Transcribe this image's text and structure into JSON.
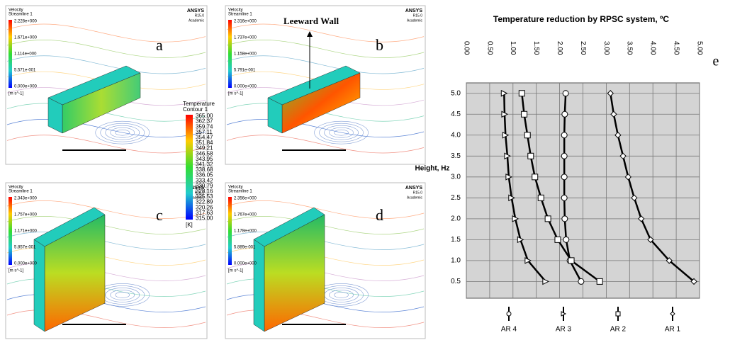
{
  "panels": [
    {
      "label": "a",
      "brand": "ANSYS",
      "version": "R15.0",
      "badge": "Academic",
      "legend": {
        "title": "Velocity",
        "subtitle": "Streamline 1",
        "values": [
          "2.228e+000",
          "1.671e+000",
          "1.114e+000",
          "5.571e-001",
          "0.000e+000"
        ],
        "unit": "[m s^-1]"
      }
    },
    {
      "label": "b",
      "brand": "ANSYS",
      "version": "R15.0",
      "badge": "Academic",
      "legend": {
        "title": "Velocity",
        "subtitle": "Streamline 1",
        "values": [
          "2.316e+000",
          "1.737e+000",
          "1.158e+000",
          "5.791e-001",
          "0.000e+000"
        ],
        "unit": "[m s^-1]"
      }
    },
    {
      "label": "c",
      "brand": "ANSYS",
      "version": "R15.0",
      "badge": "Academic",
      "legend": {
        "title": "Velocity",
        "subtitle": "Streamline 1",
        "values": [
          "2.343e+000",
          "1.757e+000",
          "1.171e+000",
          "5.857e-001",
          "0.000e+000"
        ],
        "unit": "[m s^-1]"
      }
    },
    {
      "label": "d",
      "brand": "ANSYS",
      "version": "R15.0",
      "badge": "Academic",
      "legend": {
        "title": "Velocity",
        "subtitle": "Streamline 1",
        "values": [
          "2.356e+000",
          "1.767e+000",
          "1.178e+000",
          "5.889e-001",
          "0.000e+000"
        ],
        "unit": "[m s^-1]"
      }
    }
  ],
  "annotation": "Leeward Wall",
  "temperature_legend": {
    "title": "Temperature",
    "subtitle": "Contour 1",
    "values": [
      "365.00",
      "362.37",
      "359.74",
      "357.11",
      "354.47",
      "351.84",
      "349.21",
      "346.58",
      "343.95",
      "341.32",
      "338.68",
      "336.05",
      "333.42",
      "330.79",
      "328.16",
      "325.53",
      "322.89",
      "320.26",
      "317.63",
      "315.00"
    ],
    "unit": "[K]"
  },
  "chart_data": {
    "type": "line",
    "label": "e",
    "title": "Temperature reduction by RPSC system, ºC",
    "y_label": "Height, Hz",
    "y": [
      5,
      4.5,
      4,
      3.5,
      3,
      2.5,
      2,
      1.5,
      1,
      0.5
    ],
    "series": [
      {
        "name": "AR 4",
        "color": "#000000",
        "marker": "circle",
        "values": [
          2.13,
          2.11,
          2.1,
          2.1,
          2.1,
          2.1,
          2.11,
          2.14,
          2.22,
          2.46
        ]
      },
      {
        "name": "AR 3",
        "color": "#000000",
        "marker": "triangle",
        "values": [
          0.81,
          0.82,
          0.84,
          0.88,
          0.91,
          0.97,
          1.05,
          1.16,
          1.32,
          1.7
        ]
      },
      {
        "name": "AR 2",
        "color": "#000000",
        "marker": "square",
        "values": [
          1.19,
          1.24,
          1.31,
          1.38,
          1.47,
          1.6,
          1.75,
          1.96,
          2.25,
          2.86
        ]
      },
      {
        "name": "AR 1",
        "color": "#000000",
        "marker": "diamond",
        "values": [
          3.09,
          3.16,
          3.25,
          3.36,
          3.47,
          3.6,
          3.75,
          3.95,
          4.35,
          4.88
        ]
      }
    ],
    "xlim": [
      0,
      5
    ],
    "xticks": [
      {
        "value": 0,
        "label": "0.00"
      },
      {
        "value": 0.5,
        "label": "0.50"
      },
      {
        "value": 1,
        "label": "1.00"
      },
      {
        "value": 1.5,
        "label": "1.50"
      },
      {
        "value": 2,
        "label": "2.00"
      },
      {
        "value": 2.5,
        "label": "2.50"
      },
      {
        "value": 3,
        "label": "3.00"
      },
      {
        "value": 3.5,
        "label": "3.50"
      },
      {
        "value": 4,
        "label": "4.00"
      },
      {
        "value": 4.5,
        "label": "4.50"
      },
      {
        "value": 5,
        "label": "5.00"
      }
    ],
    "ylim": [
      0.1,
      5.25
    ],
    "yticks": [
      0.5,
      {
        "value": 1,
        "label": "1.0"
      },
      1.5,
      {
        "value": 2,
        "label": "2.0"
      },
      2.5,
      {
        "value": 3,
        "label": "3.0"
      },
      3.5,
      {
        "value": 4,
        "label": "4.0"
      },
      4.5,
      {
        "value": 5,
        "label": "5.0"
      }
    ],
    "grid": true,
    "plot_background": "#d4d4d4",
    "legend": "bottom"
  }
}
